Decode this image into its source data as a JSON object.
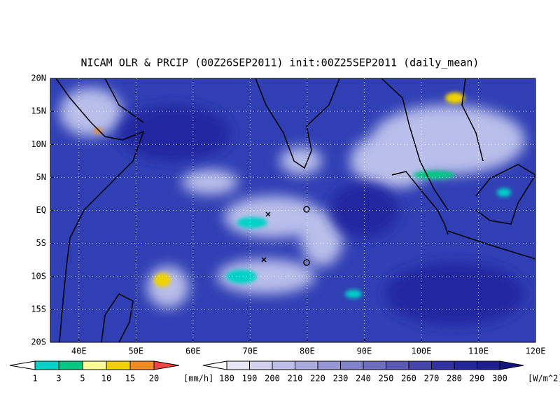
{
  "title": "NICAM OLR & PRCIP (00Z26SEP2011) init:00Z25SEP2011 (daily_mean)",
  "map": {
    "lat_labels": [
      "20N",
      "15N",
      "10N",
      "5N",
      "EQ",
      "5S",
      "10S",
      "15S",
      "20S"
    ],
    "lon_labels": [
      "40E",
      "50E",
      "60E",
      "70E",
      "80E",
      "90E",
      "100E",
      "110E",
      "120E"
    ]
  },
  "precip_legend": {
    "labels": [
      1,
      3,
      5,
      10,
      15,
      20
    ],
    "unit": "[mm/h]",
    "colors": [
      "#ffffff",
      "#00d2c8",
      "#00c882",
      "#fafa96",
      "#f0d200",
      "#f08c28",
      "#f04646"
    ]
  },
  "olr_legend": {
    "labels": [
      180,
      190,
      200,
      210,
      220,
      230,
      240,
      250,
      260,
      270,
      280,
      290,
      300
    ],
    "unit": "[W/m^2]",
    "colors": [
      "#ffffff",
      "#e6e6f5",
      "#d2d2ee",
      "#bebee6",
      "#aaaadc",
      "#9696d2",
      "#8282c8",
      "#6e6ebe",
      "#5a5ab4",
      "#4646aa",
      "#3232a0",
      "#232896",
      "#1e1e8c",
      "#141482"
    ]
  }
}
